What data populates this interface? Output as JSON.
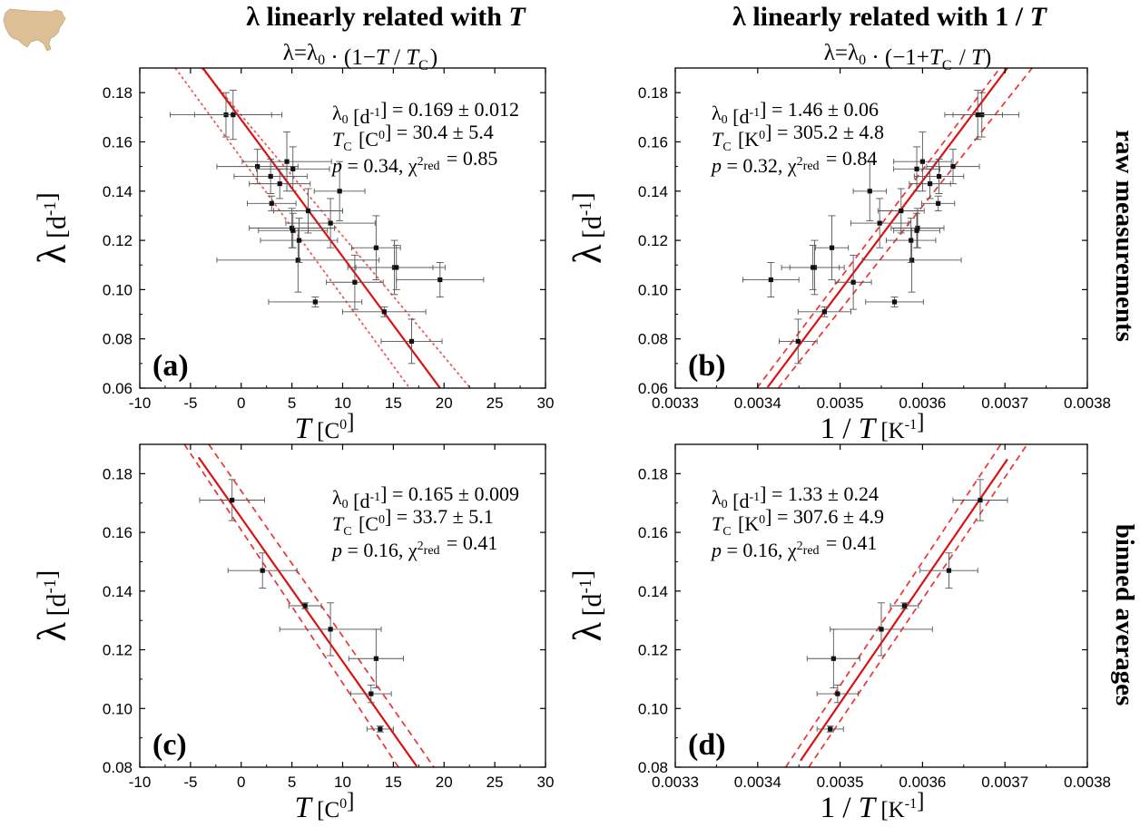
{
  "figure": {
    "col_titles": [
      {
        "prefix": "λ linearly related with ",
        "var": "T"
      },
      {
        "prefix": "λ linearly related with 1 / ",
        "var": "T"
      }
    ],
    "formulas": [
      "λ=λ₀ · (1−T / T_C)",
      "λ=λ₀ · (−1+T_C / T)"
    ],
    "row_labels": [
      "raw measurements",
      "binned averages"
    ],
    "colors": {
      "fit": "#dd1111",
      "band_ab": "#ee3333",
      "points": "#111111",
      "errorbar": "#555555",
      "logo": "#dcbf95"
    },
    "logo_icon": "usa-map-icon"
  },
  "chart_data": [
    {
      "id": "a",
      "type": "scatter",
      "panel_label": "(a)",
      "xlabel": "T",
      "xunit": "[C⁰]",
      "ylabel": "λ",
      "yunit": "[d⁻¹]",
      "xlim": [
        -10,
        30
      ],
      "ylim": [
        0.06,
        0.19
      ],
      "xticks": [
        -10,
        -5,
        0,
        5,
        10,
        15,
        20,
        25,
        30
      ],
      "xticklabels": [
        "-10",
        "-5",
        "0",
        "5",
        "10",
        "15",
        "20",
        "25",
        "30"
      ],
      "yticks": [
        0.06,
        0.08,
        0.1,
        0.12,
        0.14,
        0.16,
        0.18
      ],
      "yticklabels": [
        "0.06",
        "0.08",
        "0.10",
        "0.12",
        "0.14",
        "0.16",
        "0.18"
      ],
      "band_style": "dotted",
      "fit": {
        "lambda0": 0.169,
        "Tc": 30.4,
        "domain": [
          -5.0,
          19.8
        ]
      },
      "band": {
        "upper": [
          [
            -3.9,
            0.19
          ],
          [
            22.6,
            0.06
          ]
        ],
        "lower": [
          [
            -6.5,
            0.19
          ],
          [
            16.6,
            0.06
          ]
        ]
      },
      "annotations": [
        "λ₀ [d⁻¹] = 0.169 ± 0.012",
        "T_C [C⁰] = 30.4 ± 5.4",
        "p = 0.34, χ²_red = 0.85"
      ],
      "points": [
        {
          "x": -1.5,
          "y": 0.171,
          "xerr": 5.5,
          "yerr": 0.009
        },
        {
          "x": -0.8,
          "y": 0.171,
          "xerr": 3.8,
          "yerr": 0.01
        },
        {
          "x": 1.6,
          "y": 0.15,
          "xerr": 4.0,
          "yerr": 0.007
        },
        {
          "x": 2.9,
          "y": 0.146,
          "xerr": 3.6,
          "yerr": 0.007
        },
        {
          "x": 3.0,
          "y": 0.135,
          "xerr": 2.4,
          "yerr": 0.003
        },
        {
          "x": 3.8,
          "y": 0.143,
          "xerr": 3.0,
          "yerr": 0.006
        },
        {
          "x": 4.5,
          "y": 0.152,
          "xerr": 4.4,
          "yerr": 0.012
        },
        {
          "x": 5.0,
          "y": 0.125,
          "xerr": 4.2,
          "yerr": 0.008
        },
        {
          "x": 5.1,
          "y": 0.124,
          "xerr": 3.4,
          "yerr": 0.007
        },
        {
          "x": 5.1,
          "y": 0.149,
          "xerr": 3.6,
          "yerr": 0.009
        },
        {
          "x": 5.6,
          "y": 0.112,
          "xerr": 8.0,
          "yerr": 0.013
        },
        {
          "x": 5.7,
          "y": 0.12,
          "xerr": 3.8,
          "yerr": 0.009
        },
        {
          "x": 6.6,
          "y": 0.132,
          "xerr": 3.4,
          "yerr": 0.009
        },
        {
          "x": 8.8,
          "y": 0.127,
          "xerr": 4.4,
          "yerr": 0.01
        },
        {
          "x": 9.7,
          "y": 0.14,
          "xerr": 2.5,
          "yerr": 0.012
        },
        {
          "x": 7.3,
          "y": 0.095,
          "xerr": 4.6,
          "yerr": 0.002
        },
        {
          "x": 11.2,
          "y": 0.103,
          "xerr": 2.8,
          "yerr": 0.011
        },
        {
          "x": 13.3,
          "y": 0.117,
          "xerr": 2.4,
          "yerr": 0.013
        },
        {
          "x": 14.1,
          "y": 0.091,
          "xerr": 4.1,
          "yerr": 0.002
        },
        {
          "x": 15.1,
          "y": 0.109,
          "xerr": 3.8,
          "yerr": 0.011
        },
        {
          "x": 15.3,
          "y": 0.109,
          "xerr": 4.8,
          "yerr": 0.009
        },
        {
          "x": 16.8,
          "y": 0.079,
          "xerr": 3.0,
          "yerr": 0.009
        },
        {
          "x": 19.6,
          "y": 0.104,
          "xerr": 4.3,
          "yerr": 0.007
        }
      ]
    },
    {
      "id": "b",
      "type": "scatter",
      "panel_label": "(b)",
      "xlabel": "1 / T",
      "xunit": "[K⁻¹]",
      "ylabel": "λ",
      "yunit": "[d⁻¹]",
      "xlim": [
        0.0033,
        0.0038
      ],
      "ylim": [
        0.06,
        0.19
      ],
      "xticks": [
        0.0033,
        0.0034,
        0.0035,
        0.0036,
        0.0037,
        0.0038
      ],
      "xticklabels": [
        "0.0033",
        "0.0034",
        "0.0035",
        "0.0036",
        "0.0037",
        "0.0038"
      ],
      "yticks": [
        0.06,
        0.08,
        0.1,
        0.12,
        0.14,
        0.16,
        0.18
      ],
      "yticklabels": [
        "0.06",
        "0.08",
        "0.10",
        "0.12",
        "0.14",
        "0.16",
        "0.18"
      ],
      "band_style": "dashed",
      "fit": {
        "lambda0": 1.46,
        "Tc": 305.2,
        "domain": [
          0.003412,
          0.003714
        ]
      },
      "band": {
        "upper": [
          [
            0.003399,
            0.06
          ],
          [
            0.003694,
            0.19
          ]
        ],
        "lower": [
          [
            0.003425,
            0.06
          ],
          [
            0.003733,
            0.19
          ]
        ]
      },
      "annotations": [
        "λ₀ [d⁻¹] = 1.46 ± 0.06",
        "T_C [K⁰] = 305.2 ± 4.8",
        "p = 0.32, χ²_red = 0.84"
      ],
      "points": [
        {
          "x": 0.003672,
          "y": 0.171,
          "xerr": 4.5e-05,
          "yerr": 0.009
        },
        {
          "x": 0.003667,
          "y": 0.171,
          "xerr": 3e-05,
          "yerr": 0.01
        },
        {
          "x": 0.003637,
          "y": 0.15,
          "xerr": 3.2e-05,
          "yerr": 0.007
        },
        {
          "x": 0.00362,
          "y": 0.146,
          "xerr": 3e-05,
          "yerr": 0.007
        },
        {
          "x": 0.003619,
          "y": 0.135,
          "xerr": 2e-05,
          "yerr": 0.003
        },
        {
          "x": 0.003609,
          "y": 0.143,
          "xerr": 2.5e-05,
          "yerr": 0.006
        },
        {
          "x": 0.0036,
          "y": 0.152,
          "xerr": 3.5e-05,
          "yerr": 0.012
        },
        {
          "x": 0.003594,
          "y": 0.125,
          "xerr": 3.2e-05,
          "yerr": 0.008
        },
        {
          "x": 0.003593,
          "y": 0.124,
          "xerr": 2.8e-05,
          "yerr": 0.007
        },
        {
          "x": 0.003593,
          "y": 0.149,
          "xerr": 2.8e-05,
          "yerr": 0.009
        },
        {
          "x": 0.003587,
          "y": 0.112,
          "xerr": 6e-05,
          "yerr": 0.013
        },
        {
          "x": 0.003586,
          "y": 0.12,
          "xerr": 3e-05,
          "yerr": 0.009
        },
        {
          "x": 0.003574,
          "y": 0.132,
          "xerr": 2.8e-05,
          "yerr": 0.009
        },
        {
          "x": 0.003548,
          "y": 0.127,
          "xerr": 3.5e-05,
          "yerr": 0.01
        },
        {
          "x": 0.003536,
          "y": 0.14,
          "xerr": 2e-05,
          "yerr": 0.012
        },
        {
          "x": 0.003566,
          "y": 0.095,
          "xerr": 3.5e-05,
          "yerr": 0.002
        },
        {
          "x": 0.003516,
          "y": 0.103,
          "xerr": 2.2e-05,
          "yerr": 0.011
        },
        {
          "x": 0.00349,
          "y": 0.117,
          "xerr": 2e-05,
          "yerr": 0.013
        },
        {
          "x": 0.003481,
          "y": 0.091,
          "xerr": 3.2e-05,
          "yerr": 0.002
        },
        {
          "x": 0.003469,
          "y": 0.109,
          "xerr": 3e-05,
          "yerr": 0.011
        },
        {
          "x": 0.003467,
          "y": 0.109,
          "xerr": 3.8e-05,
          "yerr": 0.009
        },
        {
          "x": 0.003449,
          "y": 0.079,
          "xerr": 2.3e-05,
          "yerr": 0.009
        },
        {
          "x": 0.003416,
          "y": 0.104,
          "xerr": 3.4e-05,
          "yerr": 0.007
        }
      ]
    },
    {
      "id": "c",
      "type": "scatter",
      "panel_label": "(c)",
      "xlabel": "T",
      "xunit": "[C⁰]",
      "ylabel": "λ",
      "yunit": "[d⁻¹]",
      "xlim": [
        -10,
        30
      ],
      "ylim": [
        0.08,
        0.19
      ],
      "xticks": [
        -10,
        -5,
        0,
        5,
        10,
        15,
        20,
        25,
        30
      ],
      "xticklabels": [
        "-10",
        "-5",
        "0",
        "5",
        "10",
        "15",
        "20",
        "25",
        "30"
      ],
      "yticks": [
        0.08,
        0.1,
        0.12,
        0.14,
        0.16,
        0.18
      ],
      "yticklabels": [
        "0.08",
        "0.10",
        "0.12",
        "0.14",
        "0.16",
        "0.18"
      ],
      "band_style": "dashed",
      "fit": {
        "lambda0": 0.165,
        "Tc": 33.7,
        "domain": [
          -4.2,
          17.3
        ]
      },
      "band": {
        "upper": [
          [
            -3.2,
            0.19
          ],
          [
            19.0,
            0.08
          ]
        ],
        "lower": [
          [
            -5.6,
            0.19
          ],
          [
            15.5,
            0.08
          ]
        ]
      },
      "annotations": [
        "λ₀ [d⁻¹] = 0.165 ± 0.009",
        "T_C [C⁰] = 33.7 ± 5.1",
        "p = 0.16, χ²_red = 0.41"
      ],
      "points": [
        {
          "x": -0.9,
          "y": 0.171,
          "xerr": 3.2,
          "yerr": 0.007
        },
        {
          "x": 2.1,
          "y": 0.147,
          "xerr": 3.4,
          "yerr": 0.006
        },
        {
          "x": 6.3,
          "y": 0.135,
          "xerr": 1.6,
          "yerr": 0.001
        },
        {
          "x": 8.8,
          "y": 0.127,
          "xerr": 5.0,
          "yerr": 0.009
        },
        {
          "x": 13.3,
          "y": 0.117,
          "xerr": 2.7,
          "yerr": 0.01
        },
        {
          "x": 12.8,
          "y": 0.105,
          "xerr": 2.0,
          "yerr": 0.003
        },
        {
          "x": 13.7,
          "y": 0.093,
          "xerr": 1.3,
          "yerr": 0.001
        }
      ]
    },
    {
      "id": "d",
      "type": "scatter",
      "panel_label": "(d)",
      "xlabel": "1 / T",
      "xunit": "[K⁻¹]",
      "ylabel": "λ",
      "yunit": "[d⁻¹]",
      "xlim": [
        0.0033,
        0.0038
      ],
      "ylim": [
        0.08,
        0.19
      ],
      "xticks": [
        0.0033,
        0.0034,
        0.0035,
        0.0036,
        0.0037,
        0.0038
      ],
      "xticklabels": [
        "0.0033",
        "0.0034",
        "0.0035",
        "0.0036",
        "0.0037",
        "0.0038"
      ],
      "yticks": [
        0.08,
        0.1,
        0.12,
        0.14,
        0.16,
        0.18
      ],
      "yticklabels": [
        "0.08",
        "0.10",
        "0.12",
        "0.14",
        "0.16",
        "0.18"
      ],
      "band_style": "dashed",
      "fit": {
        "lambda0": 1.33,
        "Tc": 307.6,
        "domain": [
          0.003452,
          0.003703
        ]
      },
      "band": {
        "upper": [
          [
            0.003434,
            0.08
          ],
          [
            0.003695,
            0.19
          ]
        ],
        "lower": [
          [
            0.003462,
            0.08
          ],
          [
            0.003727,
            0.19
          ]
        ]
      },
      "annotations": [
        "λ₀ [d⁻¹] = 1.33 ± 0.24",
        "T_C [K⁰] = 307.6 ± 4.9",
        "p = 0.16, χ²_red = 0.41"
      ],
      "points": [
        {
          "x": 0.00367,
          "y": 0.171,
          "xerr": 3.3e-05,
          "yerr": 0.007
        },
        {
          "x": 0.003632,
          "y": 0.147,
          "xerr": 3.5e-05,
          "yerr": 0.006
        },
        {
          "x": 0.003578,
          "y": 0.135,
          "xerr": 1.7e-05,
          "yerr": 0.001
        },
        {
          "x": 0.00355,
          "y": 0.127,
          "xerr": 6.2e-05,
          "yerr": 0.009
        },
        {
          "x": 0.003492,
          "y": 0.117,
          "xerr": 3.2e-05,
          "yerr": 0.01
        },
        {
          "x": 0.003497,
          "y": 0.105,
          "xerr": 2.5e-05,
          "yerr": 0.003
        },
        {
          "x": 0.003488,
          "y": 0.093,
          "xerr": 1.6e-05,
          "yerr": 0.001
        }
      ]
    }
  ]
}
